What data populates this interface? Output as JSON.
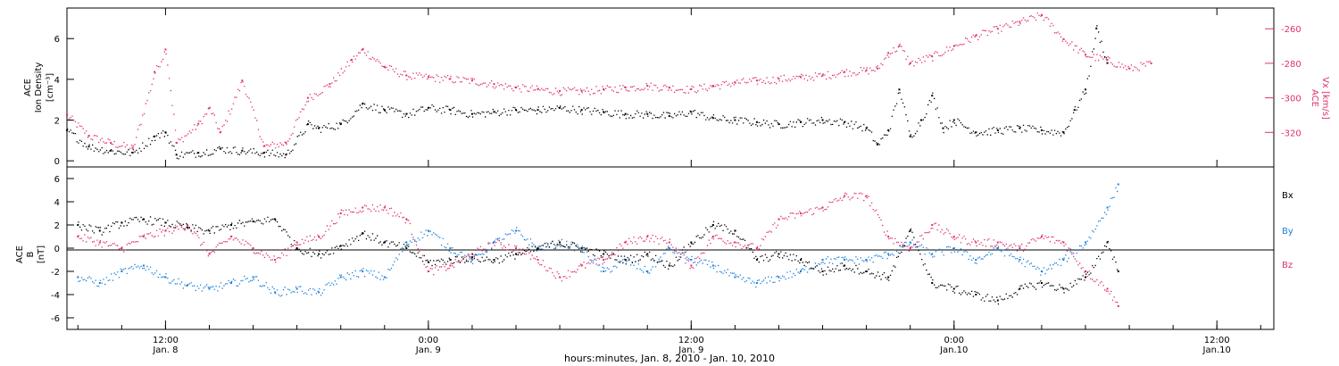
{
  "colors": {
    "black": "#000000",
    "pink": "#e0306a",
    "blue": "#1a7fd9"
  },
  "x_axis": {
    "title": "hours:minutes, Jan. 8, 2010 - Jan. 10, 2010",
    "ticks": [
      {
        "hours": 12,
        "time": "12:00",
        "date": "Jan. 8"
      },
      {
        "hours": 24,
        "time": "0:00",
        "date": "Jan. 9"
      },
      {
        "hours": 36,
        "time": "12:00",
        "date": "Jan. 9"
      },
      {
        "hours": 48,
        "time": "0:00",
        "date": "Jan.10"
      },
      {
        "hours": 60,
        "time": "12:00",
        "date": "Jan.10"
      }
    ]
  },
  "chart_data": [
    {
      "type": "scatter",
      "panel": "top",
      "ylabel_lines": [
        "ACE",
        "Ion Density"
      ],
      "yunit": "[cm⁻³]",
      "ylim": [
        -0.3,
        7.5
      ],
      "yticks": [
        "0",
        "2",
        "4",
        "6"
      ],
      "y2label_lines": [
        "ACE",
        "Vx [km/s]"
      ],
      "y2lim": [
        -340,
        -248
      ],
      "y2ticks": [
        "-260",
        "-280",
        "-300",
        "-320"
      ],
      "x_range_hours": [
        7.5,
        62.6
      ],
      "series": [
        {
          "axis": "left",
          "color": "black",
          "x": [
            7.5,
            8.5,
            9.5,
            10.5,
            11.5,
            12.0,
            12.5,
            13.5,
            14.5,
            15.5,
            16.5,
            17.5,
            18.5,
            19.0,
            20.0,
            21.0,
            22.0,
            23.0,
            24.0,
            25.0,
            26.0,
            27.0,
            28.0,
            29.0,
            30.0,
            31.0,
            32.0,
            33.0,
            34.0,
            35.0,
            36.0,
            37.0,
            38.0,
            39.0,
            40.0,
            41.0,
            42.0,
            43.0,
            44.0,
            44.5,
            45.0,
            45.5,
            46.0,
            46.5,
            47.0,
            47.5,
            48.0,
            49.0,
            50.0,
            51.0,
            52.0,
            53.0,
            53.5,
            54.0,
            54.5,
            55.0
          ],
          "y": [
            1.5,
            0.7,
            0.5,
            0.4,
            1.2,
            1.4,
            0.3,
            0.4,
            0.6,
            0.5,
            0.4,
            0.3,
            1.8,
            1.6,
            1.8,
            2.8,
            2.5,
            2.3,
            2.6,
            2.5,
            2.3,
            2.4,
            2.5,
            2.5,
            2.6,
            2.5,
            2.4,
            2.3,
            2.3,
            2.2,
            2.4,
            2.1,
            2.0,
            1.9,
            1.8,
            1.9,
            2.0,
            1.9,
            1.6,
            0.8,
            1.5,
            3.5,
            1.2,
            2.0,
            3.2,
            1.6,
            2.0,
            1.4,
            1.5,
            1.6,
            1.5,
            1.4,
            2.5,
            3.5,
            6.5,
            4.8
          ]
        },
        {
          "axis": "right",
          "color": "pink",
          "x": [
            7.5,
            8.5,
            9.5,
            10.5,
            11.5,
            12.0,
            12.5,
            13.5,
            14.0,
            14.5,
            15.5,
            16.5,
            17.5,
            18.5,
            19.5,
            20.5,
            21.0,
            22.0,
            23.0,
            24.0,
            25.0,
            26.0,
            27.0,
            28.0,
            29.0,
            30.0,
            31.0,
            32.0,
            33.0,
            34.0,
            35.0,
            36.0,
            37.0,
            38.0,
            39.0,
            40.0,
            41.0,
            42.0,
            43.0,
            44.0,
            44.5,
            45.0,
            45.5,
            46.0,
            47.0,
            48.0,
            49.0,
            50.0,
            51.0,
            52.0,
            53.0,
            54.0,
            55.0,
            56.0,
            57.0
          ],
          "y": [
            -310,
            -322,
            -326,
            -329,
            -285,
            -272,
            -326,
            -315,
            -306,
            -320,
            -290,
            -328,
            -326,
            -300,
            -292,
            -278,
            -272,
            -282,
            -287,
            -288,
            -289,
            -290,
            -292,
            -294,
            -295,
            -296,
            -296,
            -295,
            -294,
            -293,
            -294,
            -295,
            -293,
            -291,
            -290,
            -289,
            -288,
            -287,
            -285,
            -284,
            -283,
            -274,
            -270,
            -280,
            -276,
            -270,
            -264,
            -260,
            -256,
            -252,
            -266,
            -275,
            -278,
            -283,
            -280
          ]
        }
      ]
    },
    {
      "type": "scatter",
      "panel": "bottom",
      "ylabel_lines": [
        "ACE",
        "B"
      ],
      "yunit": "[nT]",
      "ylim": [
        -7,
        7
      ],
      "yticks": [
        "-6",
        "-4",
        "-2",
        "0",
        "2",
        "4",
        "6"
      ],
      "x_range_hours": [
        7.5,
        62.6
      ],
      "series": [
        {
          "name": "Bx",
          "color": "black",
          "x": [
            8.0,
            9.0,
            10.0,
            11.0,
            12.0,
            13.0,
            14.0,
            15.0,
            16.0,
            17.0,
            18.0,
            19.0,
            20.0,
            21.0,
            22.0,
            23.0,
            24.0,
            25.0,
            26.0,
            27.0,
            28.0,
            29.0,
            30.0,
            31.0,
            32.0,
            33.0,
            34.0,
            35.0,
            36.0,
            37.0,
            38.0,
            39.0,
            40.0,
            41.0,
            42.0,
            43.0,
            44.0,
            45.0,
            46.0,
            47.0,
            48.0,
            49.0,
            50.0,
            51.0,
            52.0,
            53.0,
            54.0,
            55.0,
            55.5
          ],
          "y": [
            2.0,
            1.5,
            2.2,
            2.5,
            2.2,
            1.8,
            1.5,
            2.0,
            2.3,
            2.5,
            0.0,
            -0.5,
            0.2,
            1.3,
            0.5,
            0.0,
            -1.2,
            -1.0,
            -0.8,
            -1.0,
            -0.5,
            0.0,
            0.5,
            0.0,
            -0.5,
            -1.0,
            -0.5,
            -1.5,
            0.5,
            2.0,
            1.5,
            -1.0,
            -0.5,
            -1.0,
            -2.0,
            -1.5,
            -2.0,
            -2.5,
            1.5,
            -3.0,
            -3.5,
            -4.0,
            -4.5,
            -3.5,
            -3.0,
            -3.5,
            -2.5,
            0.5,
            -2.0
          ]
        },
        {
          "name": "By",
          "color": "blue",
          "x": [
            8.0,
            9.0,
            10.0,
            11.0,
            12.0,
            13.0,
            14.0,
            15.0,
            16.0,
            17.0,
            18.0,
            19.0,
            20.0,
            21.0,
            22.0,
            23.0,
            24.0,
            25.0,
            26.0,
            27.0,
            28.0,
            29.0,
            30.0,
            31.0,
            32.0,
            33.0,
            34.0,
            35.0,
            36.0,
            37.0,
            38.0,
            39.0,
            40.0,
            41.0,
            42.0,
            43.0,
            44.0,
            45.0,
            46.0,
            47.0,
            48.0,
            49.0,
            50.0,
            51.0,
            52.0,
            53.0,
            54.0,
            55.0,
            55.5
          ],
          "y": [
            -2.5,
            -3.0,
            -2.0,
            -1.5,
            -2.5,
            -3.2,
            -3.5,
            -3.0,
            -2.5,
            -3.8,
            -3.5,
            -3.8,
            -2.5,
            -2.0,
            -2.5,
            0.5,
            1.5,
            0.0,
            -1.0,
            0.5,
            1.5,
            0.0,
            0.5,
            0.0,
            -2.0,
            -1.0,
            -2.0,
            0.0,
            -1.0,
            -1.5,
            -2.5,
            -3.0,
            -2.5,
            -2.0,
            -1.0,
            -1.0,
            -1.0,
            -0.5,
            0.5,
            -0.5,
            0.0,
            -1.0,
            0.0,
            -1.0,
            -2.0,
            -1.0,
            0.5,
            3.5,
            5.5
          ]
        },
        {
          "name": "Bz",
          "color": "pink",
          "x": [
            8.0,
            9.0,
            10.0,
            11.0,
            12.0,
            13.0,
            14.0,
            15.0,
            16.0,
            17.0,
            18.0,
            19.0,
            20.0,
            21.0,
            22.0,
            23.0,
            24.0,
            25.0,
            26.0,
            27.0,
            28.0,
            29.0,
            30.0,
            31.0,
            32.0,
            33.0,
            34.0,
            35.0,
            36.0,
            37.0,
            38.0,
            39.0,
            40.0,
            41.0,
            42.0,
            43.0,
            44.0,
            45.0,
            46.0,
            47.0,
            48.0,
            49.0,
            50.0,
            51.0,
            52.0,
            53.0,
            54.0,
            55.0,
            55.5
          ],
          "y": [
            1.0,
            0.5,
            0.0,
            1.0,
            1.5,
            2.0,
            -0.5,
            1.0,
            0.0,
            -1.0,
            0.5,
            1.0,
            3.0,
            3.5,
            3.5,
            2.5,
            -2.0,
            -1.5,
            -0.5,
            0.5,
            0.0,
            -1.0,
            -2.5,
            -1.5,
            -1.0,
            0.5,
            1.0,
            0.5,
            -1.5,
            1.0,
            0.5,
            0.0,
            2.5,
            3.0,
            3.5,
            4.5,
            4.5,
            1.0,
            0.0,
            2.0,
            1.0,
            0.5,
            0.5,
            0.0,
            1.0,
            0.5,
            -2.0,
            -3.5,
            -5.0
          ]
        }
      ]
    }
  ]
}
